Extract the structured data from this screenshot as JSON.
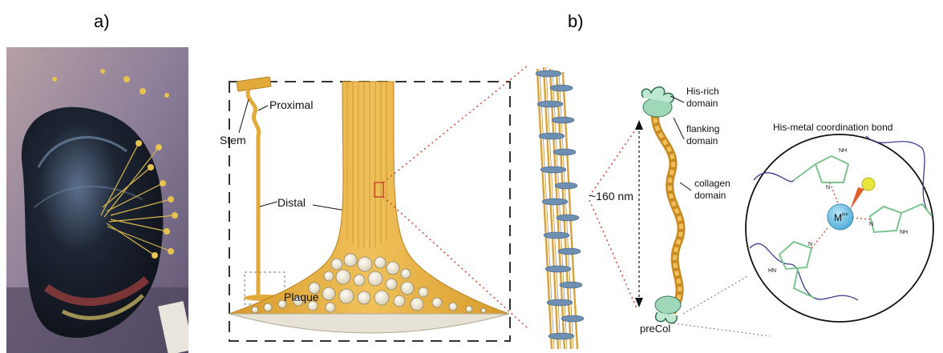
{
  "panels": {
    "a": "a)",
    "b": "b)"
  },
  "byssus": {
    "stem": "Stem",
    "proximal": "Proximal",
    "distal": "Distal",
    "plaque": "Plaque"
  },
  "precol": {
    "his_rich_domain": [
      "His-rich",
      "domain"
    ],
    "flanking_domain": [
      "flanking",
      "domain"
    ],
    "collagen_domain": [
      "collagen",
      "domain"
    ],
    "length": "~160 nm",
    "name": "preCol"
  },
  "coordination": {
    "title": "His-metal coordination bond",
    "metal": "M",
    "metal_charge": "n+",
    "nh_labels": [
      "NH",
      "HN",
      "NH"
    ],
    "n_labels": [
      "N",
      "N",
      "N"
    ]
  },
  "colors": {
    "fiber": "#e2aa3a",
    "fiber_dark": "#b9801c",
    "precol_domain": "#9fd8b8",
    "metal": "#6cc3e6",
    "ring": "#7cc48f",
    "ligand": "#e7e63c",
    "bond_stub": "#e0602c",
    "red_dots": "#d0452e",
    "fibril_bead": "#6c8fb2"
  }
}
